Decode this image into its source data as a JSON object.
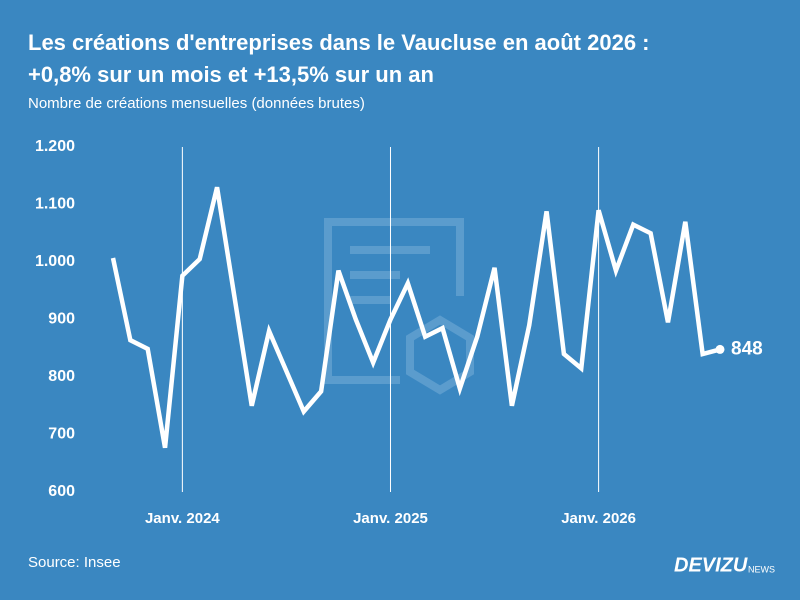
{
  "chart_data": {
    "type": "line",
    "title": "Les créations d'entreprises dans le Vaucluse en août 2026 :",
    "subtitle": "+0,8% sur un mois et +13,5% sur un an",
    "y_label": "Nombre de créations mensuelles (données brutes)",
    "source": "Source: Insee",
    "brand": "DEVIZU",
    "brand_suffix": "NEWS",
    "categories": [
      null,
      null,
      null,
      null,
      "Janv. 2024",
      null,
      null,
      null,
      null,
      null,
      null,
      null,
      null,
      null,
      null,
      null,
      "Janv. 2025",
      null,
      null,
      null,
      null,
      null,
      null,
      null,
      null,
      null,
      null,
      null,
      "Janv. 2026",
      null,
      null,
      null,
      null,
      null,
      null,
      null
    ],
    "values": [
      1007,
      864,
      849,
      677,
      976,
      1005,
      1130,
      940,
      750,
      880,
      810,
      740,
      775,
      985,
      900,
      825,
      900,
      963,
      870,
      885,
      780,
      870,
      990,
      750,
      890,
      1088,
      840,
      815,
      1090,
      985,
      1065,
      1050,
      895,
      1070,
      840,
      848
    ],
    "color": "#ffffff",
    "ylim": [
      600,
      1200
    ],
    "yticks": [
      600,
      700,
      800,
      900,
      {
        "value": 1000,
        "label": "1.000"
      },
      {
        "value": 1100,
        "label": "1.100"
      },
      {
        "value": 1200,
        "label": "1.200"
      }
    ],
    "grid": true
  }
}
